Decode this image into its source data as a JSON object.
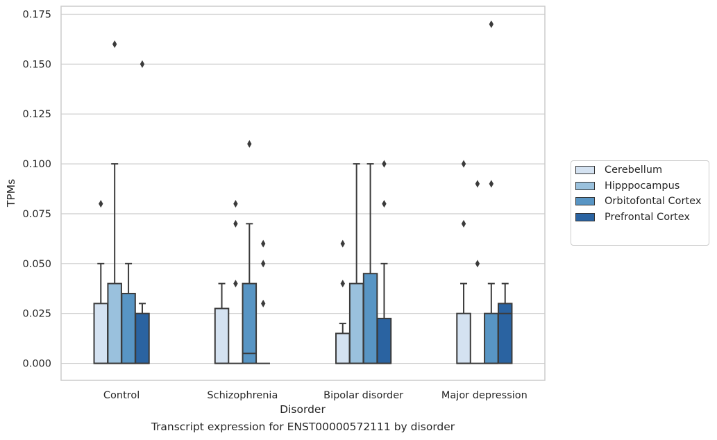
{
  "caption": "Transcript expression for ENST00000572111 by disorder",
  "colors": {
    "Cerebellum": "#d4e2f1",
    "Hipppocampus": "#9ac1dd",
    "Orbitofontal Cortex": "#5895c4",
    "Prefrontal Cortex": "#2a63a1"
  },
  "chart_data": {
    "type": "box",
    "xlabel": "Disorder",
    "ylabel": "TPMs",
    "ylim": [
      -0.0085,
      0.179
    ],
    "yticks": [
      "0.000",
      "0.025",
      "0.050",
      "0.075",
      "0.100",
      "0.125",
      "0.150",
      "0.175"
    ],
    "categories": [
      "Control",
      "Schizophrenia",
      "Bipolar disorder",
      "Major depression"
    ],
    "grid": true,
    "legend_position": "right",
    "series": [
      {
        "name": "Cerebellum",
        "boxes": [
          {
            "q1": 0,
            "median": 0,
            "q3": 0.03,
            "whislo": 0,
            "whishi": 0.05,
            "fliers": [
              0.08
            ]
          },
          {
            "q1": 0,
            "median": 0,
            "q3": 0.0275,
            "whislo": 0,
            "whishi": 0.04,
            "fliers": []
          },
          {
            "q1": 0,
            "median": 0,
            "q3": 0.015,
            "whislo": 0,
            "whishi": 0.02,
            "fliers": [
              0.04,
              0.06
            ]
          },
          {
            "q1": 0,
            "median": 0,
            "q3": 0.025,
            "whislo": 0,
            "whishi": 0.04,
            "fliers": [
              0.07,
              0.1
            ]
          }
        ]
      },
      {
        "name": "Hipppocampus",
        "boxes": [
          {
            "q1": 0,
            "median": 0,
            "q3": 0.04,
            "whislo": 0,
            "whishi": 0.1,
            "fliers": [
              0.16
            ]
          },
          {
            "q1": 0,
            "median": 0,
            "q3": 0,
            "whislo": 0,
            "whishi": 0,
            "fliers": [
              0.04,
              0.07,
              0.08
            ]
          },
          {
            "q1": 0,
            "median": 0,
            "q3": 0.04,
            "whislo": 0,
            "whishi": 0.1,
            "fliers": []
          },
          {
            "q1": 0,
            "median": 0,
            "q3": 0,
            "whislo": 0,
            "whishi": 0,
            "fliers": [
              0.05,
              0.09
            ]
          }
        ]
      },
      {
        "name": "Orbitofontal Cortex",
        "boxes": [
          {
            "q1": 0,
            "median": 0,
            "q3": 0.035,
            "whislo": 0,
            "whishi": 0.05,
            "fliers": []
          },
          {
            "q1": 0,
            "median": 0.005,
            "q3": 0.04,
            "whislo": 0,
            "whishi": 0.07,
            "fliers": [
              0.11
            ]
          },
          {
            "q1": 0,
            "median": 0,
            "q3": 0.045,
            "whislo": 0,
            "whishi": 0.1,
            "fliers": []
          },
          {
            "q1": 0,
            "median": 0,
            "q3": 0.025,
            "whislo": 0,
            "whishi": 0.04,
            "fliers": [
              0.09,
              0.17
            ]
          }
        ]
      },
      {
        "name": "Prefrontal Cortex",
        "boxes": [
          {
            "q1": 0,
            "median": 0,
            "q3": 0.025,
            "whislo": 0,
            "whishi": 0.03,
            "fliers": [
              0.15
            ]
          },
          {
            "q1": 0,
            "median": 0,
            "q3": 0,
            "whislo": 0,
            "whishi": 0,
            "fliers": [
              0.03,
              0.05,
              0.06
            ]
          },
          {
            "q1": 0,
            "median": 0,
            "q3": 0.0225,
            "whislo": 0,
            "whishi": 0.05,
            "fliers": [
              0.08,
              0.1
            ]
          },
          {
            "q1": 0,
            "median": 0.025,
            "q3": 0.03,
            "whislo": 0,
            "whishi": 0.04,
            "fliers": []
          }
        ]
      }
    ]
  }
}
